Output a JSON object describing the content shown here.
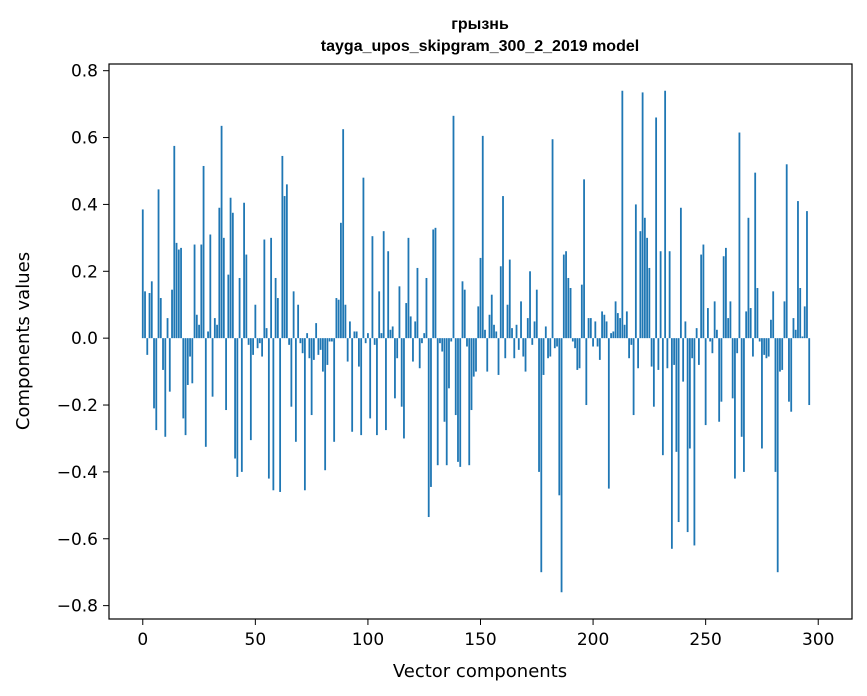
{
  "chart_data": {
    "type": "bar",
    "title": "грызнь",
    "subtitle": "tayga_upos_skipgram_300_2_2019 model",
    "xlabel": "Vector components",
    "ylabel": "Components values",
    "xlim": [
      -15,
      315
    ],
    "ylim": [
      -0.84,
      0.82
    ],
    "xticks": [
      0,
      50,
      100,
      150,
      200,
      250,
      300
    ],
    "xtick_labels": [
      "0",
      "50",
      "100",
      "150",
      "200",
      "250",
      "300"
    ],
    "yticks": [
      -0.8,
      -0.6,
      -0.4,
      -0.2,
      0.0,
      0.2,
      0.4,
      0.6,
      0.8
    ],
    "ytick_labels": [
      "−0.8",
      "−0.6",
      "−0.4",
      "−0.2",
      "0.0",
      "0.2",
      "0.4",
      "0.6",
      "0.8"
    ],
    "grid": false,
    "bar_color": "#1f77b4",
    "x": "0..299",
    "values": [
      0.385,
      0.14,
      -0.05,
      0.135,
      0.17,
      -0.21,
      -0.275,
      0.445,
      0.12,
      -0.095,
      -0.295,
      0.06,
      -0.16,
      0.145,
      0.575,
      0.285,
      0.265,
      0.27,
      -0.24,
      -0.29,
      -0.14,
      -0.055,
      -0.135,
      0.28,
      0.07,
      0.04,
      0.28,
      0.515,
      -0.325,
      0.02,
      0.31,
      -0.175,
      0.06,
      0.04,
      0.39,
      0.635,
      0.3,
      -0.215,
      0.19,
      0.42,
      0.375,
      -0.36,
      -0.415,
      0.18,
      -0.4,
      0.405,
      0.25,
      -0.02,
      -0.305,
      -0.05,
      0.1,
      -0.03,
      -0.015,
      -0.055,
      0.295,
      0.03,
      -0.42,
      0.3,
      -0.455,
      0.18,
      0.12,
      -0.46,
      0.545,
      0.425,
      0.46,
      -0.02,
      -0.205,
      0.14,
      -0.31,
      0.1,
      -0.015,
      -0.045,
      -0.455,
      0.015,
      -0.06,
      -0.23,
      -0.065,
      0.045,
      -0.05,
      -0.035,
      -0.1,
      -0.395,
      -0.08,
      -0.01,
      -0.01,
      -0.31,
      0.12,
      0.115,
      0.345,
      0.625,
      0.1,
      -0.07,
      0.05,
      -0.28,
      0.02,
      0.02,
      -0.085,
      -0.29,
      0.48,
      -0.015,
      0.015,
      -0.24,
      0.305,
      -0.02,
      -0.29,
      0.14,
      0.015,
      0.32,
      -0.275,
      0.26,
      0.025,
      0.035,
      -0.18,
      -0.06,
      0.155,
      -0.205,
      -0.3,
      0.105,
      0.3,
      0.065,
      -0.07,
      0.05,
      0.21,
      -0.09,
      -0.015,
      0.015,
      0.18,
      -0.535,
      -0.445,
      0.325,
      0.33,
      -0.38,
      -0.015,
      -0.04,
      -0.25,
      -0.38,
      -0.15,
      -0.01,
      0.665,
      -0.23,
      -0.37,
      -0.385,
      0.17,
      0.145,
      -0.025,
      -0.38,
      -0.215,
      -0.115,
      -0.1,
      0.095,
      0.24,
      0.605,
      0.025,
      -0.1,
      0.07,
      0.13,
      0.04,
      0.02,
      -0.11,
      0.215,
      0.425,
      -0.06,
      0.1,
      0.235,
      0.03,
      -0.06,
      0.04,
      -0.035,
      0.11,
      -0.055,
      -0.1,
      0.06,
      0.2,
      -0.02,
      0.05,
      0.145,
      -0.4,
      -0.7,
      -0.11,
      0.035,
      -0.06,
      -0.055,
      0.595,
      -0.03,
      -0.025,
      -0.47,
      -0.76,
      0.25,
      0.26,
      0.18,
      0.15,
      -0.01,
      -0.03,
      -0.095,
      -0.09,
      0.16,
      0.475,
      -0.2,
      0.06,
      0.06,
      -0.025,
      0.05,
      -0.025,
      -0.065,
      0.08,
      0.07,
      0.05,
      -0.45,
      0.015,
      0.02,
      0.11,
      0.075,
      0.06,
      0.74,
      0.04,
      0.08,
      -0.06,
      -0.02,
      -0.23,
      0.4,
      -0.09,
      0.32,
      0.735,
      0.36,
      0.3,
      0.21,
      -0.085,
      -0.205,
      0.66,
      -0.095,
      0.26,
      -0.35,
      0.74,
      -0.09,
      0.26,
      -0.63,
      -0.08,
      -0.34,
      -0.55,
      0.39,
      -0.13,
      0.05,
      -0.58,
      -0.33,
      -0.06,
      -0.62,
      0.03,
      -0.08,
      0.25,
      0.28,
      -0.26,
      0.09,
      -0.01,
      -0.045,
      0.11,
      0.025,
      -0.25,
      -0.19,
      0.245,
      0.27,
      0.06,
      0.11,
      -0.18,
      -0.42,
      -0.045,
      0.615,
      -0.295,
      -0.4,
      0.08,
      0.36,
      0.09,
      -0.055,
      0.495,
      0.15,
      -0.01,
      -0.33,
      -0.05,
      -0.06,
      -0.055,
      0.055,
      0.14,
      -0.4,
      -0.7,
      -0.1,
      -0.095,
      0.11,
      0.52,
      -0.19,
      -0.22,
      0.06,
      0.025,
      0.41,
      0.15,
      0.005,
      0.095,
      0.38,
      -0.2
    ]
  }
}
